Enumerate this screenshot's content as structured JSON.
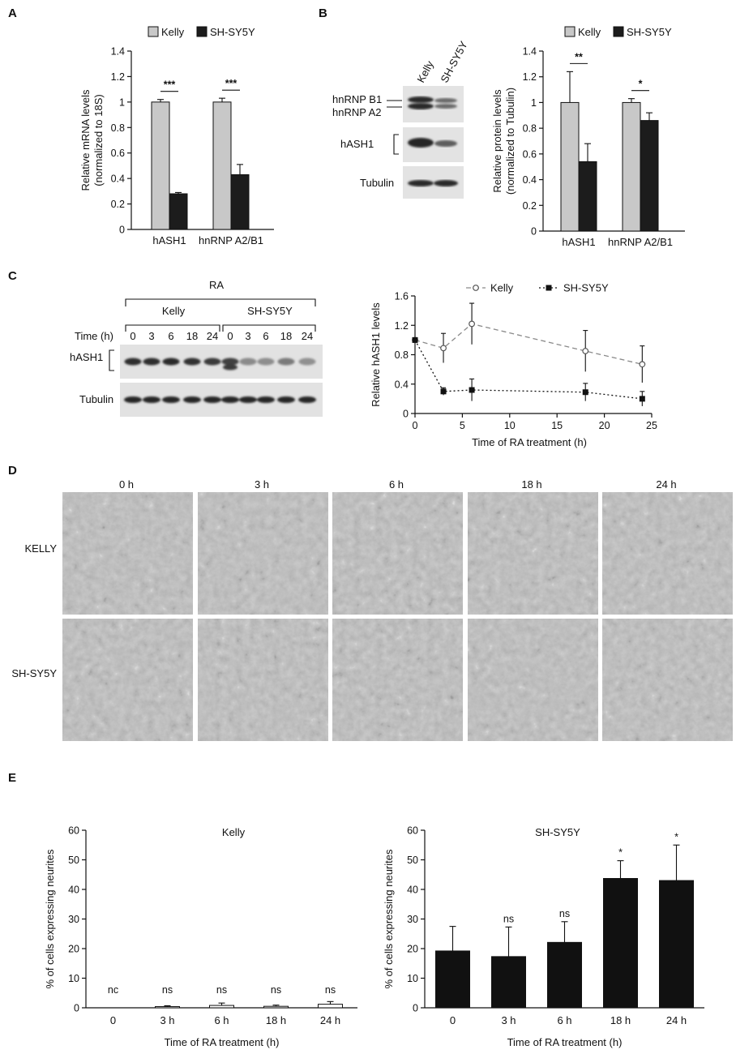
{
  "panel_labels": {
    "a": "A",
    "b": "B",
    "c": "C",
    "d": "D",
    "e": "E"
  },
  "colors": {
    "kelly": "#c8c8c8",
    "shsy5y": "#1c1c1c",
    "kelly_line": "#8a8a8a",
    "bar_e": "#111111"
  },
  "blot_b": {
    "lanes": [
      "Kelly",
      "SH-SY5Y"
    ],
    "labels": [
      "hnRNP B1",
      "hnRNP A2",
      "hASH1",
      "Tubulin"
    ]
  },
  "blot_c": {
    "treatment": "RA",
    "groups": [
      "Kelly",
      "SH-SY5Y"
    ],
    "time_label": "Time (h)",
    "times": [
      "0",
      "3",
      "6",
      "18",
      "24",
      "0",
      "3",
      "6",
      "18",
      "24"
    ],
    "labels": [
      "hASH1",
      "Tubulin"
    ]
  },
  "micrographs": {
    "times": [
      "0 h",
      "3 h",
      "6 h",
      "18 h",
      "24 h"
    ],
    "rows": [
      "KELLY",
      "SH-SY5Y"
    ]
  },
  "chart_data": [
    {
      "id": "A",
      "type": "bar",
      "categories": [
        "hASH1",
        "hnRNP  A2/B1"
      ],
      "series": [
        {
          "name": "Kelly",
          "values": [
            1.0,
            1.0
          ],
          "errors": [
            0.02,
            0.03
          ]
        },
        {
          "name": "SH-SY5Y",
          "values": [
            0.28,
            0.43
          ],
          "errors": [
            0.01,
            0.08
          ]
        }
      ],
      "significance": [
        "***",
        "***"
      ],
      "ylabel": "Relative mRNA levels\n(normalized to 18S)",
      "ylim": [
        0,
        1.4
      ],
      "yticks": [
        "0",
        "0.2",
        "0.4",
        "0.6",
        "0.8",
        "1",
        "1.2",
        "1.4"
      ],
      "legend": "top"
    },
    {
      "id": "B",
      "type": "bar",
      "categories": [
        "hASH1",
        "hnRNP  A2/B1"
      ],
      "series": [
        {
          "name": "Kelly",
          "values": [
            1.0,
            1.0
          ],
          "errors": [
            0.24,
            0.03
          ]
        },
        {
          "name": "SH-SY5Y",
          "values": [
            0.54,
            0.86
          ],
          "errors": [
            0.14,
            0.06
          ]
        }
      ],
      "significance": [
        "**",
        "*"
      ],
      "ylabel": "Relative protein levels\n(normalized to Tubulin)",
      "ylim": [
        0,
        1.4
      ],
      "yticks": [
        "0",
        "0.2",
        "0.4",
        "0.6",
        "0.8",
        "1",
        "1.2",
        "1.4"
      ],
      "legend": "top"
    },
    {
      "id": "C",
      "type": "line",
      "series": [
        {
          "name": "Kelly",
          "x": [
            0,
            3,
            6,
            18,
            24
          ],
          "y": [
            1.0,
            0.89,
            1.22,
            0.85,
            0.67
          ],
          "errors": [
            0.02,
            0.2,
            0.28,
            0.28,
            0.25
          ]
        },
        {
          "name": "SH-SY5Y",
          "x": [
            0,
            3,
            6,
            18,
            24
          ],
          "y": [
            1.0,
            0.3,
            0.32,
            0.29,
            0.2
          ],
          "errors": [
            0.02,
            0.05,
            0.15,
            0.12,
            0.1
          ]
        }
      ],
      "xlabel": "Time of RA treatment (h)",
      "ylabel": "Relative hASH1 levels",
      "xlim": [
        0,
        25
      ],
      "ylim": [
        0,
        1.6
      ],
      "xticks": [
        "0",
        "5",
        "10",
        "15",
        "20",
        "25"
      ],
      "yticks": [
        "0",
        "0.4",
        "0.8",
        "1.2",
        "1.6"
      ],
      "legend": "top"
    },
    {
      "id": "E1",
      "type": "bar",
      "title": "Kelly",
      "categories": [
        "0",
        "3 h",
        "6 h",
        "18 h",
        "24 h"
      ],
      "values": [
        0,
        0.4,
        0.8,
        0.5,
        1.2
      ],
      "errors": [
        0,
        0.3,
        0.8,
        0.4,
        0.9
      ],
      "significance": [
        "nc",
        "ns",
        "ns",
        "ns",
        "ns"
      ],
      "xlabel": "Time of RA treatment (h)",
      "ylabel": "% of cells expressing neurites",
      "ylim": [
        0,
        60
      ],
      "yticks": [
        "0",
        "10",
        "20",
        "30",
        "40",
        "50",
        "60"
      ]
    },
    {
      "id": "E2",
      "type": "bar",
      "title": "SH-SY5Y",
      "categories": [
        "0",
        "3 h",
        "6 h",
        "18 h",
        "24 h"
      ],
      "values": [
        19.2,
        17.3,
        22.1,
        43.7,
        43.0
      ],
      "errors": [
        8.3,
        10.0,
        7.0,
        6.0,
        12.0
      ],
      "significance": [
        "",
        "ns",
        "ns",
        "*",
        "*"
      ],
      "xlabel": "Time of RA treatment (h)",
      "ylabel": "% of cells expressing neurites",
      "ylim": [
        0,
        60
      ],
      "yticks": [
        "0",
        "10",
        "20",
        "30",
        "40",
        "50",
        "60"
      ]
    }
  ]
}
